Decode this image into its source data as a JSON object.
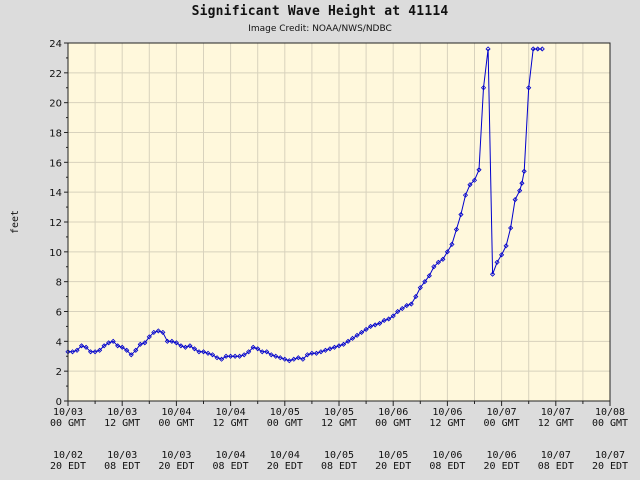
{
  "chart_data": {
    "type": "line",
    "title": "Significant Wave Height at 41114",
    "subtitle": "Image Credit: NOAA/NWS/NDBC",
    "ylabel": "feet",
    "ylim": [
      0,
      24
    ],
    "yticks": [
      0,
      2,
      4,
      6,
      8,
      10,
      12,
      14,
      16,
      18,
      20,
      22,
      24
    ],
    "xlim_hours": [
      0,
      120
    ],
    "grid": true,
    "line_color": "#0000cc",
    "plot_background": "#fff8dc",
    "x_ticks": [
      {
        "gmt_date": "10/03",
        "gmt_time": "00 GMT",
        "edt_date": "10/02",
        "edt_time": "20 EDT"
      },
      {
        "gmt_date": "10/03",
        "gmt_time": "12 GMT",
        "edt_date": "10/03",
        "edt_time": "08 EDT"
      },
      {
        "gmt_date": "10/04",
        "gmt_time": "00 GMT",
        "edt_date": "10/03",
        "edt_time": "20 EDT"
      },
      {
        "gmt_date": "10/04",
        "gmt_time": "12 GMT",
        "edt_date": "10/04",
        "edt_time": "08 EDT"
      },
      {
        "gmt_date": "10/05",
        "gmt_time": "00 GMT",
        "edt_date": "10/04",
        "edt_time": "20 EDT"
      },
      {
        "gmt_date": "10/05",
        "gmt_time": "12 GMT",
        "edt_date": "10/05",
        "edt_time": "08 EDT"
      },
      {
        "gmt_date": "10/06",
        "gmt_time": "00 GMT",
        "edt_date": "10/05",
        "edt_time": "20 EDT"
      },
      {
        "gmt_date": "10/06",
        "gmt_time": "12 GMT",
        "edt_date": "10/06",
        "edt_time": "08 EDT"
      },
      {
        "gmt_date": "10/07",
        "gmt_time": "00 GMT",
        "edt_date": "10/06",
        "edt_time": "20 EDT"
      },
      {
        "gmt_date": "10/07",
        "gmt_time": "12 GMT",
        "edt_date": "10/07",
        "edt_time": "08 EDT"
      },
      {
        "gmt_date": "10/08",
        "gmt_time": "00 GMT",
        "edt_date": "10/07",
        "edt_time": "20 EDT"
      }
    ],
    "series": [
      {
        "x_hours": [
          0,
          1,
          2,
          3,
          4,
          5,
          6,
          7,
          8,
          9,
          10,
          11,
          12,
          13,
          14,
          15,
          16,
          17,
          18,
          19,
          20,
          21,
          22,
          23,
          24,
          25,
          26,
          27,
          28,
          29,
          30,
          31,
          32,
          33,
          34,
          35,
          36,
          37,
          38,
          39,
          40,
          41,
          42,
          43,
          44,
          45,
          46,
          47,
          48,
          49,
          50,
          51,
          52,
          53,
          54,
          55,
          56,
          57,
          58,
          59,
          60,
          61,
          62,
          63,
          64,
          65,
          66,
          67,
          68,
          69,
          70,
          71,
          72,
          73,
          74,
          75,
          76,
          77,
          78,
          79,
          80,
          81,
          82,
          83,
          84,
          85,
          86,
          87,
          88,
          89,
          90,
          91,
          92,
          93,
          94,
          95,
          96,
          97,
          98,
          99,
          100,
          100.5,
          101,
          102,
          103,
          104,
          105
        ],
        "values": [
          3.3,
          3.3,
          3.4,
          3.7,
          3.6,
          3.3,
          3.3,
          3.4,
          3.7,
          3.9,
          4.0,
          3.7,
          3.6,
          3.4,
          3.1,
          3.4,
          3.8,
          3.9,
          4.3,
          4.6,
          4.7,
          4.6,
          4.0,
          4.0,
          3.9,
          3.7,
          3.6,
          3.7,
          3.5,
          3.3,
          3.3,
          3.2,
          3.1,
          2.9,
          2.8,
          3.0,
          3.0,
          3.0,
          3.0,
          3.1,
          3.3,
          3.6,
          3.5,
          3.3,
          3.3,
          3.1,
          3.0,
          2.9,
          2.8,
          2.7,
          2.8,
          2.9,
          2.8,
          3.1,
          3.2,
          3.2,
          3.3,
          3.4,
          3.5,
          3.6,
          3.7,
          3.8,
          4.0,
          4.2,
          4.4,
          4.6,
          4.8,
          5.0,
          5.1,
          5.2,
          5.4,
          5.5,
          5.7,
          6.0,
          6.2,
          6.4,
          6.5,
          7.0,
          7.6,
          8.0,
          8.4,
          9.0,
          9.3,
          9.5,
          10.0,
          10.5,
          11.5,
          12.5,
          13.8,
          14.5,
          14.8,
          15.5,
          21.0,
          23.6,
          8.5,
          9.3,
          9.8,
          10.4,
          11.6,
          13.5,
          14.1,
          14.6,
          15.4,
          21.0,
          23.6,
          23.6,
          23.6
        ]
      }
    ]
  }
}
